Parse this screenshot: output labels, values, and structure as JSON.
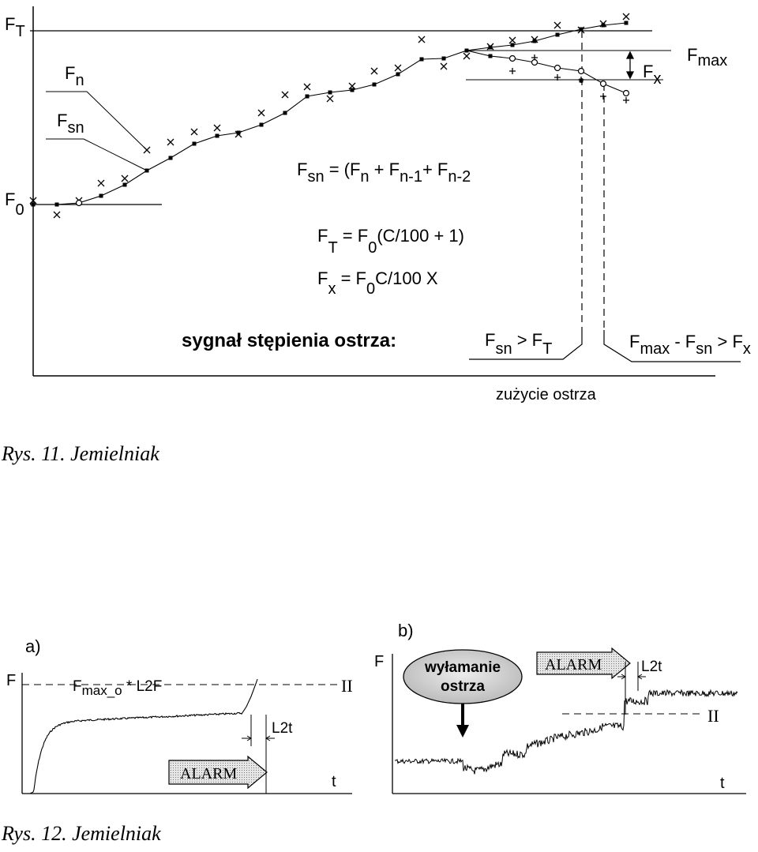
{
  "fig11": {
    "labels": {
      "ft_main": "F",
      "ft_sub": "T",
      "fn_main": "F",
      "fn_sub": "n",
      "fsn_main": "F",
      "fsn_sub": "sn",
      "f0_main": "F",
      "f0_sub": "0",
      "fmax_main": "F",
      "fmax_sub": "max",
      "fx_main": "F",
      "fx_sub": "x"
    },
    "eq1": {
      "a": "F",
      "b": "sn",
      "c": " = (F",
      "d": "n",
      "e": " + F",
      "f": "n-1",
      "g": "+ F",
      "h": "n-2"
    },
    "eq2": {
      "a": "F",
      "b": "T",
      "c": " = F",
      "d": "0",
      "e": "(C/100 + 1)"
    },
    "eq3": {
      "a": "F",
      "b": "x",
      "c": " = F",
      "d": "0",
      "e": "C/100 X"
    },
    "signal": "sygnał stępienia ostrza:",
    "cond1": {
      "a": "F",
      "b": "sn",
      "c": " > F",
      "d": "T"
    },
    "cond2": {
      "a": "F",
      "b": "max",
      "c": " - F",
      "d": "sn",
      "e": " > F",
      "f": "x"
    },
    "xlabel": "zużycie ostrza",
    "caption": "Rys. 11. Jemielniak"
  },
  "fig12": {
    "a": {
      "panel": "a)",
      "ylabel": "F",
      "level": "F",
      "level_sub": "max_o",
      "level_rest": " * L2F",
      "level_roman": "II",
      "l2t": "L2t",
      "alarm": "ALARM",
      "xlabel": "t"
    },
    "b": {
      "panel": "b)",
      "ylabel": "F",
      "bubble_1": "wyłamanie",
      "bubble_2": "ostrza",
      "alarm": "ALARM",
      "l2t": "L2t",
      "level_roman": "II",
      "xlabel": "t"
    },
    "caption": "Rys. 12. Jemielniak"
  },
  "colors": {
    "ink": "#000000",
    "alarm_fill": "#c8c8c8",
    "bubble_fill": "#d0d0d0"
  }
}
